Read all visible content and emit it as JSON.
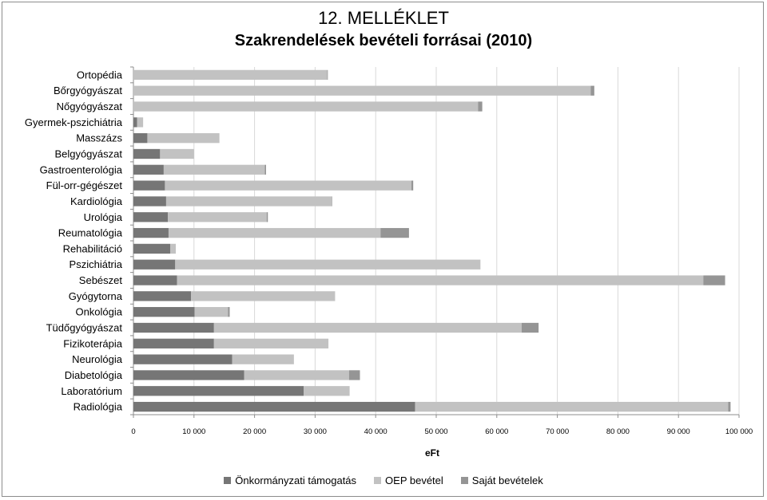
{
  "chart_data": {
    "type": "bar",
    "orientation": "horizontal",
    "stacked": true,
    "title": "12. MELLÉKLET",
    "subtitle": "Szakrendelések bevételi forrásai (2010)",
    "xlabel": "eFt",
    "ylabel": "",
    "xlim": [
      0,
      100000
    ],
    "xticks": [
      "0",
      "10 000",
      "20 000",
      "30 000",
      "40 000",
      "50 000",
      "60 000",
      "70 000",
      "80 000",
      "90 000",
      "100 000"
    ],
    "grid": true,
    "legend_position": "bottom",
    "categories": [
      "Ortopédia",
      "Bőrgyógyászat",
      "Nőgyógyászat",
      "Gyermek-pszichiátria",
      "Masszázs",
      "Belgyógyászat",
      "Gastroenterológia",
      "Fül-orr-gégészet",
      "Kardiológia",
      "Urológia",
      "Reumatológia",
      "Rehabilitáció",
      "Pszichiátria",
      "Sebészet",
      "Gyógytorna",
      "Onkológia",
      "Tüdőgyógyászat",
      "Fizikoterápia",
      "Neurológia",
      "Diabetológia",
      "Laboratórium",
      "Radiológia"
    ],
    "series": [
      {
        "name": "Önkormányzati támogatás",
        "color": "#767676",
        "values": [
          0,
          0,
          0,
          600,
          2300,
          4400,
          5000,
          5200,
          5400,
          5700,
          5800,
          6100,
          6900,
          7200,
          9500,
          10100,
          13300,
          13300,
          16300,
          18300,
          28100,
          46500
        ]
      },
      {
        "name": "OEP bevétel",
        "color": "#c2c2c2",
        "values": [
          32000,
          75500,
          56900,
          1000,
          11900,
          5600,
          16700,
          40700,
          27300,
          16300,
          35000,
          900,
          50400,
          86900,
          23800,
          5500,
          50800,
          18900,
          10200,
          17300,
          7600,
          51700
        ]
      },
      {
        "name": "Saját bevételek",
        "color": "#959595",
        "values": [
          100,
          600,
          700,
          0,
          0,
          0,
          200,
          300,
          100,
          200,
          4700,
          0,
          0,
          3600,
          0,
          300,
          2800,
          0,
          0,
          1800,
          0,
          400
        ]
      }
    ]
  }
}
